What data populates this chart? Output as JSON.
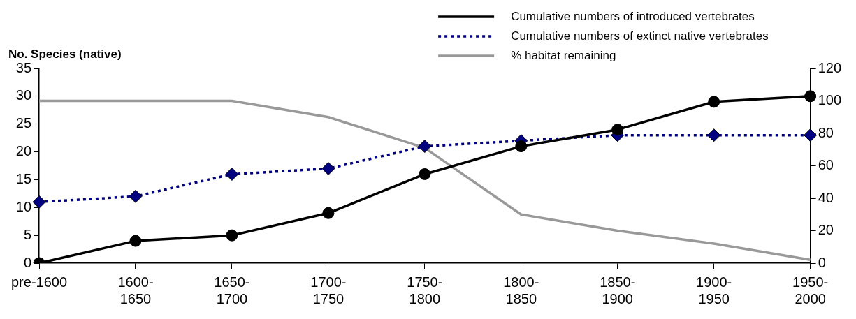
{
  "chart_data": {
    "type": "line",
    "ylabel": "No. Species (native)",
    "categories": [
      "pre-1600",
      "1600-1650",
      "1650-1700",
      "1700-1750",
      "1750-1800",
      "1800-1850",
      "1850-1900",
      "1900-1950",
      "1950-2000"
    ],
    "series": [
      {
        "name": "Cumulative numbers of introduced vertebrates",
        "color": "#000000",
        "marker": "circle",
        "line_style": "solid",
        "values": [
          0,
          4,
          5,
          9,
          16,
          21,
          24,
          29,
          30
        ]
      },
      {
        "name": "Cumulative numbers of extinct native vertebrates",
        "color": "#000080",
        "marker": "diamond",
        "line_style": "dotted",
        "values": [
          11,
          12,
          16,
          17,
          21,
          22,
          23,
          23,
          23
        ]
      },
      {
        "name": "% habitat remaining",
        "color": "#999999",
        "marker": "none",
        "line_style": "solid",
        "axis": "y2",
        "values": [
          100,
          100,
          100,
          90,
          71,
          30,
          20,
          12,
          2
        ]
      }
    ],
    "ylim": [
      0,
      35
    ],
    "yticks": [
      0,
      5,
      10,
      15,
      20,
      25,
      30,
      35
    ],
    "y2lim": [
      0,
      120
    ],
    "y2ticks": [
      0,
      20,
      40,
      60,
      80,
      100,
      120
    ],
    "grid": false,
    "legend": "top right"
  }
}
